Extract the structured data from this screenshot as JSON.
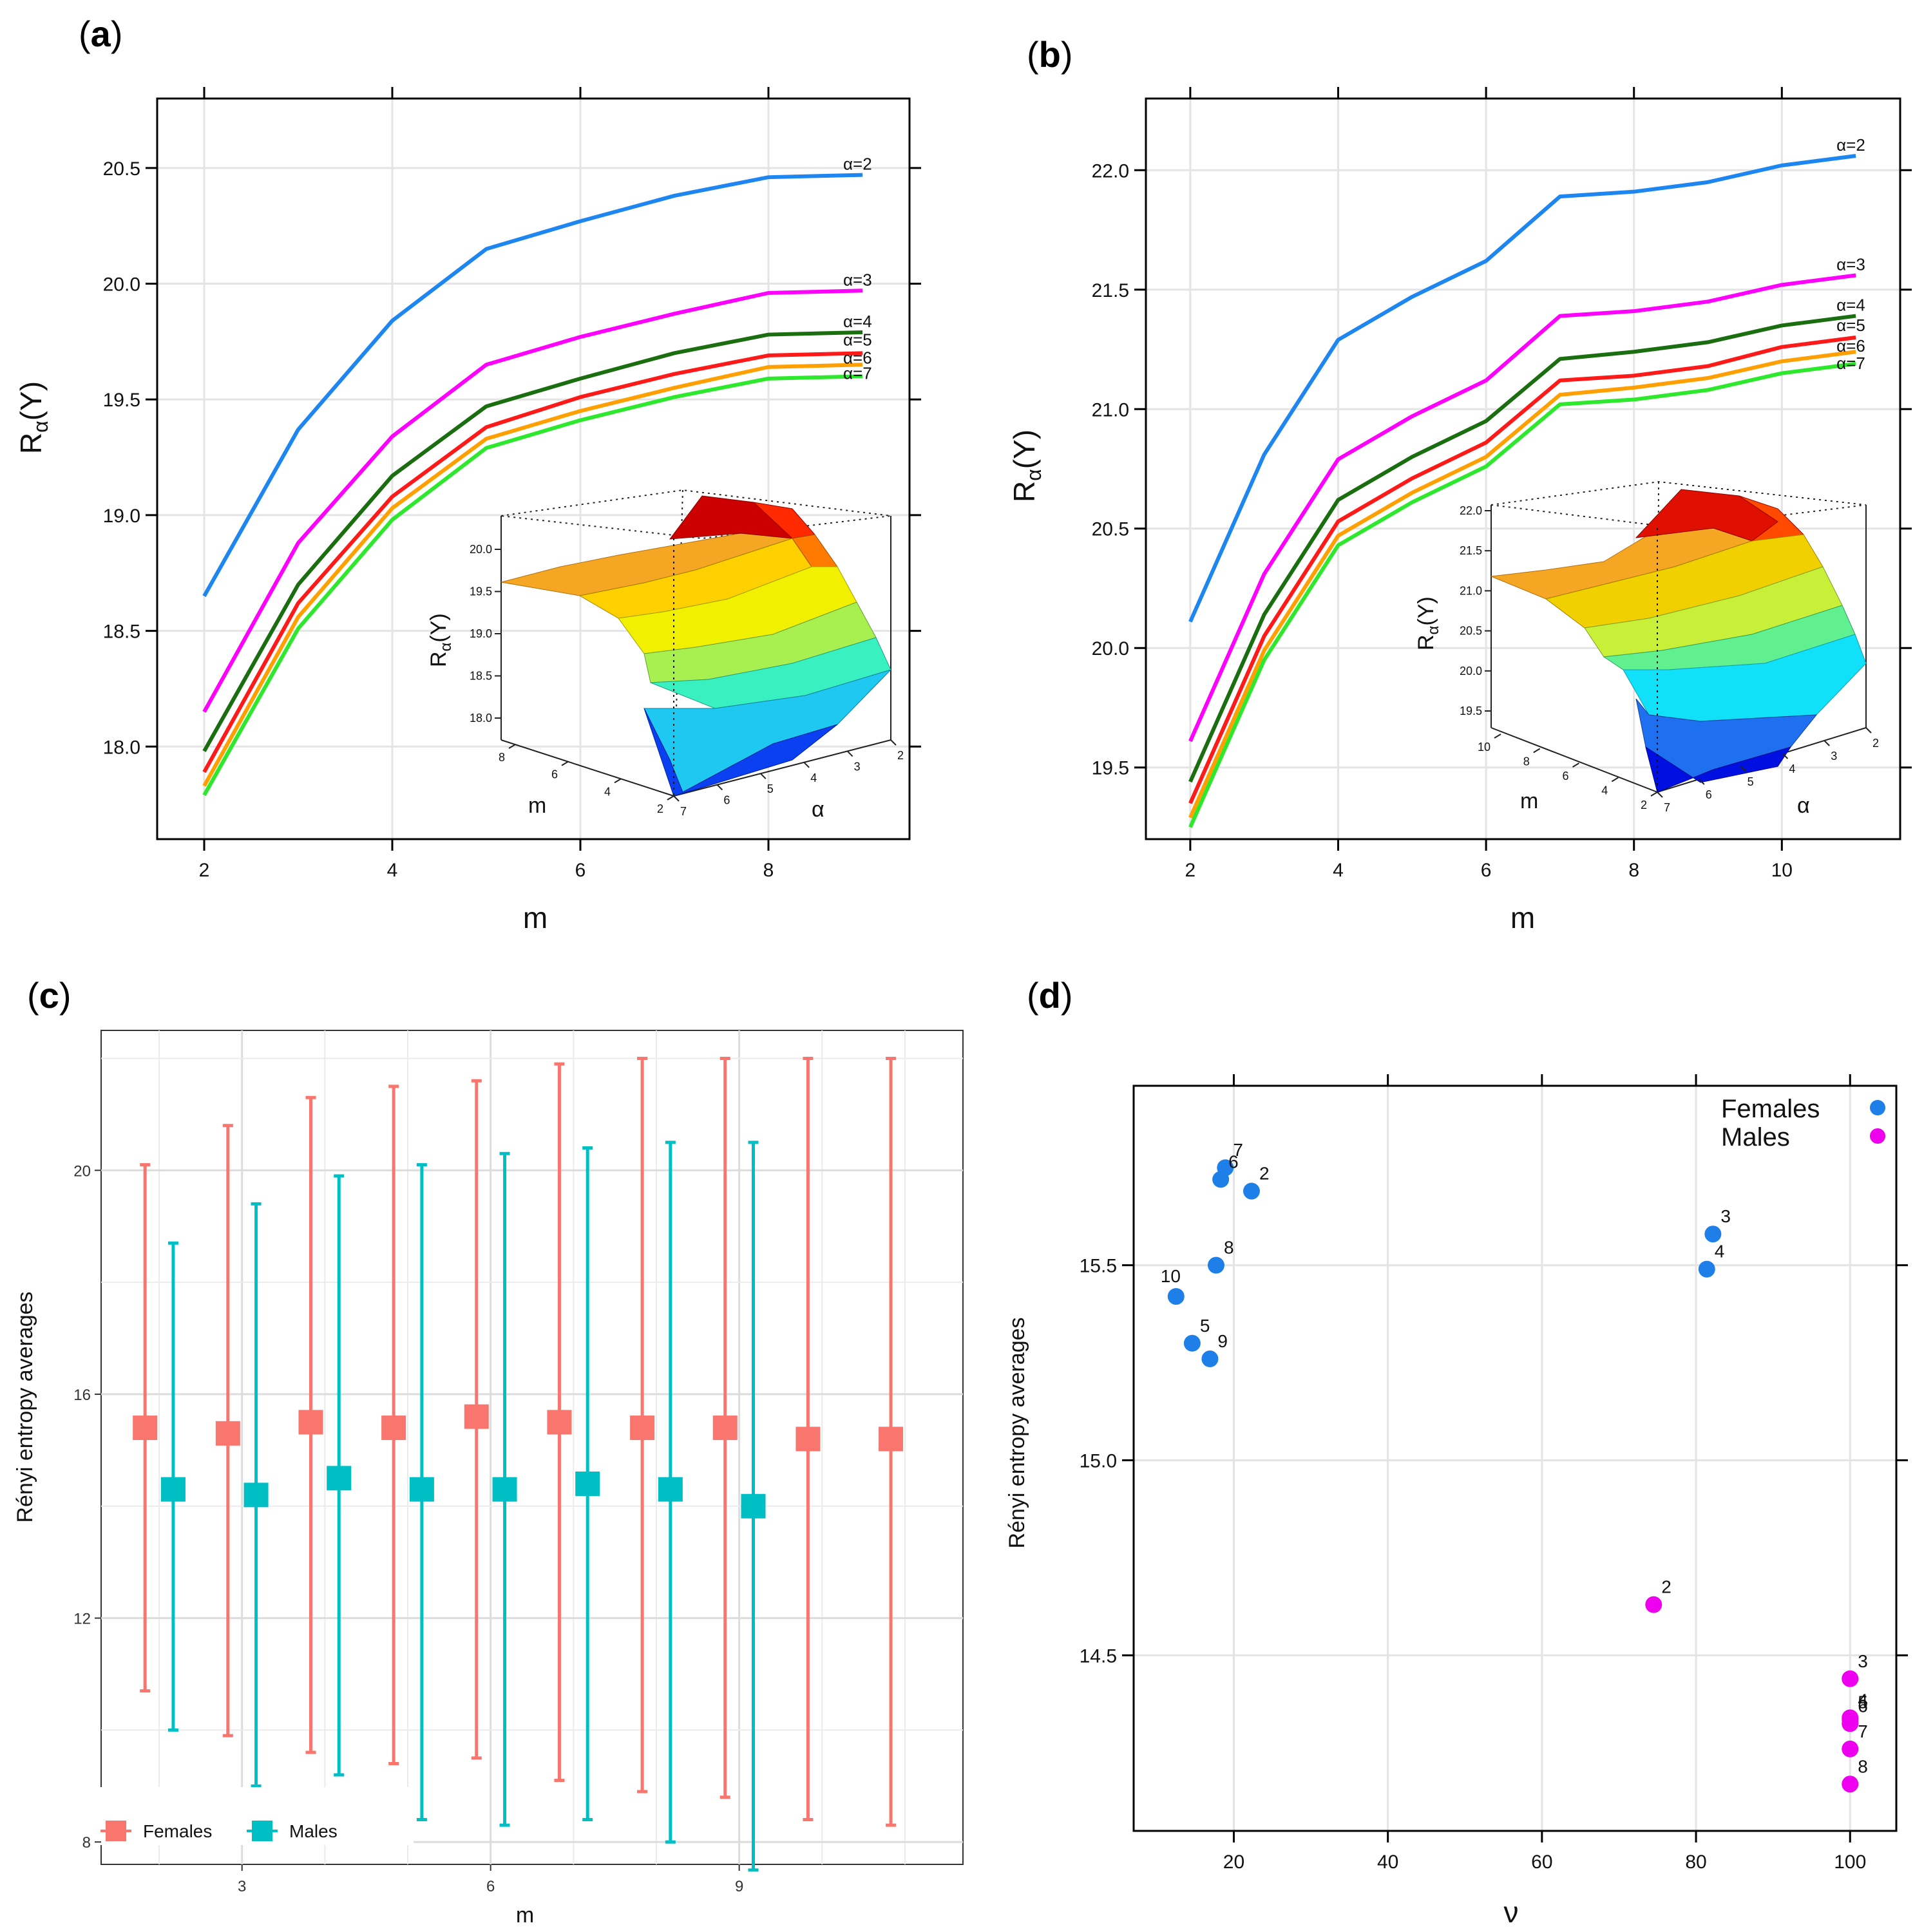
{
  "chart_data": [
    {
      "panel": "(a)",
      "type": "line",
      "xlabel": "m",
      "ylabel": "Rα(Y)",
      "xlim": [
        1.5,
        9.5
      ],
      "ylim": [
        17.6,
        20.8
      ],
      "xticks": [
        2,
        4,
        6,
        8
      ],
      "yticks": [
        18.0,
        18.5,
        19.0,
        19.5,
        20.0,
        20.5
      ],
      "x": [
        2,
        3,
        4,
        5,
        6,
        7,
        8,
        9
      ],
      "series": [
        {
          "name": "α=2",
          "color": "#1e86f0",
          "values": [
            18.65,
            19.37,
            19.84,
            20.15,
            20.27,
            20.38,
            20.46,
            20.47
          ]
        },
        {
          "name": "α=3",
          "color": "#ff00ff",
          "values": [
            18.15,
            18.88,
            19.34,
            19.65,
            19.77,
            19.87,
            19.96,
            19.97
          ]
        },
        {
          "name": "α=4",
          "color": "#1a6e10",
          "values": [
            17.98,
            18.7,
            19.17,
            19.47,
            19.59,
            19.7,
            19.78,
            19.79
          ]
        },
        {
          "name": "α=5",
          "color": "#ff1a1a",
          "values": [
            17.89,
            18.62,
            19.08,
            19.38,
            19.51,
            19.61,
            19.69,
            19.7
          ]
        },
        {
          "name": "α=6",
          "color": "#ffa000",
          "values": [
            17.83,
            18.56,
            19.03,
            19.33,
            19.45,
            19.55,
            19.64,
            19.65
          ]
        },
        {
          "name": "α=7",
          "color": "#2ee82e",
          "values": [
            17.79,
            18.51,
            18.98,
            19.29,
            19.41,
            19.51,
            19.59,
            19.6
          ]
        }
      ],
      "inset": {
        "type": "surface",
        "zlabel": "Rα(Y)",
        "xlabel": "m",
        "ylabel": "α",
        "zticks": [
          "18.0",
          "18.5",
          "19.0",
          "19.5",
          "20.0"
        ],
        "mticks": [
          "2",
          "4",
          "6",
          "8"
        ],
        "aticks": [
          "2",
          "3",
          "4",
          "5",
          "6",
          "7"
        ]
      }
    },
    {
      "panel": "(b)",
      "type": "line",
      "xlabel": "m",
      "ylabel": "Rα(Y)",
      "xlim": [
        1.4,
        11.6
      ],
      "ylim": [
        19.2,
        22.3
      ],
      "xticks": [
        2,
        4,
        6,
        8,
        10
      ],
      "yticks": [
        19.5,
        20.0,
        20.5,
        21.0,
        21.5,
        22.0
      ],
      "x": [
        2,
        3,
        4,
        5,
        6,
        7,
        8,
        9,
        10,
        11
      ],
      "series": [
        {
          "name": "α=2",
          "color": "#1e86f0",
          "values": [
            20.11,
            20.81,
            21.29,
            21.47,
            21.62,
            21.89,
            21.91,
            21.95,
            22.02,
            22.06
          ]
        },
        {
          "name": "α=3",
          "color": "#ff00ff",
          "values": [
            19.61,
            20.31,
            20.79,
            20.97,
            21.12,
            21.39,
            21.41,
            21.45,
            21.52,
            21.56
          ]
        },
        {
          "name": "α=4",
          "color": "#1a6e10",
          "values": [
            19.44,
            20.14,
            20.62,
            20.8,
            20.95,
            21.21,
            21.24,
            21.28,
            21.35,
            21.39
          ]
        },
        {
          "name": "α=5",
          "color": "#ff1a1a",
          "values": [
            19.35,
            20.05,
            20.53,
            20.71,
            20.86,
            21.12,
            21.14,
            21.18,
            21.26,
            21.3
          ]
        },
        {
          "name": "α=6",
          "color": "#ffa000",
          "values": [
            19.29,
            19.99,
            20.47,
            20.65,
            20.8,
            21.06,
            21.09,
            21.13,
            21.2,
            21.24
          ]
        },
        {
          "name": "α=7",
          "color": "#2ee82e",
          "values": [
            19.25,
            19.95,
            20.43,
            20.61,
            20.76,
            21.02,
            21.04,
            21.08,
            21.15,
            21.19
          ]
        }
      ],
      "inset": {
        "type": "surface",
        "zlabel": "Rα(Y)",
        "xlabel": "m",
        "ylabel": "α",
        "zticks": [
          "19.5",
          "20.0",
          "20.5",
          "21.0",
          "21.5",
          "22.0"
        ],
        "mticks": [
          "2",
          "4",
          "6",
          "8",
          "10"
        ],
        "aticks": [
          "2",
          "3",
          "4",
          "5",
          "6",
          "7"
        ]
      }
    },
    {
      "panel": "(c)",
      "type": "errorbar",
      "xlabel": "m",
      "ylabel": "Rényi entropy averages",
      "xlim": [
        1.3,
        11.7
      ],
      "ylim": [
        7.6,
        22.5
      ],
      "xticks": [
        3,
        6,
        9
      ],
      "yticks": [
        8,
        12,
        16,
        20
      ],
      "x": [
        2,
        3,
        4,
        5,
        6,
        7,
        8,
        9,
        10,
        11
      ],
      "series": [
        {
          "name": "Females",
          "color": "#f8766d",
          "mean": [
            15.4,
            15.3,
            15.5,
            15.4,
            15.6,
            15.5,
            15.4,
            15.4,
            15.2,
            15.2
          ],
          "lower": [
            10.7,
            9.9,
            9.6,
            9.4,
            9.5,
            9.1,
            8.9,
            8.8,
            8.4,
            8.3
          ],
          "upper": [
            20.1,
            20.8,
            21.3,
            21.5,
            21.6,
            21.9,
            22.0,
            22.0,
            22.0,
            22.0
          ]
        },
        {
          "name": "Males",
          "color": "#00bfc4",
          "mean": [
            14.3,
            14.2,
            14.5,
            14.3,
            14.3,
            14.4,
            14.3,
            14.0
          ],
          "lower": [
            10.0,
            9.0,
            9.2,
            8.4,
            8.3,
            8.4,
            8.0,
            7.5
          ],
          "upper": [
            18.7,
            19.4,
            19.9,
            20.1,
            20.3,
            20.4,
            20.5,
            20.5
          ]
        }
      ],
      "legend": "bottom-left"
    },
    {
      "panel": "(d)",
      "type": "scatter",
      "xlabel": "ν",
      "ylabel": "Rényi entropy averages",
      "xlim": [
        7,
        106
      ],
      "ylim": [
        14.05,
        15.96
      ],
      "xticks": [
        20,
        40,
        60,
        80,
        100
      ],
      "yticks": [
        14.5,
        15.0,
        15.5
      ],
      "series": [
        {
          "name": "Females",
          "color": "#1e7fe8",
          "points": [
            {
              "label": "7",
              "x": 18.9,
              "y": 15.75
            },
            {
              "label": "6",
              "x": 18.3,
              "y": 15.72
            },
            {
              "label": "2",
              "x": 22.3,
              "y": 15.69
            },
            {
              "label": "3",
              "x": 82.2,
              "y": 15.58
            },
            {
              "label": "8",
              "x": 17.7,
              "y": 15.5
            },
            {
              "label": "4",
              "x": 81.4,
              "y": 15.49
            },
            {
              "label": "10",
              "x": 12.5,
              "y": 15.42
            },
            {
              "label": "5",
              "x": 14.6,
              "y": 15.3
            },
            {
              "label": "9",
              "x": 16.9,
              "y": 15.26
            }
          ]
        },
        {
          "name": "Males",
          "color": "#ee00ee",
          "points": [
            {
              "label": "2",
              "x": 74.5,
              "y": 14.63
            },
            {
              "label": "3",
              "x": 100,
              "y": 14.44
            },
            {
              "label": "4",
              "x": 100,
              "y": 14.34
            },
            {
              "label": "5",
              "x": 100,
              "y": 14.335
            },
            {
              "label": "6",
              "x": 100,
              "y": 14.325
            },
            {
              "label": "7",
              "x": 100,
              "y": 14.26
            },
            {
              "label": "8",
              "x": 100,
              "y": 14.17
            }
          ]
        }
      ],
      "legend": "top-right"
    }
  ]
}
